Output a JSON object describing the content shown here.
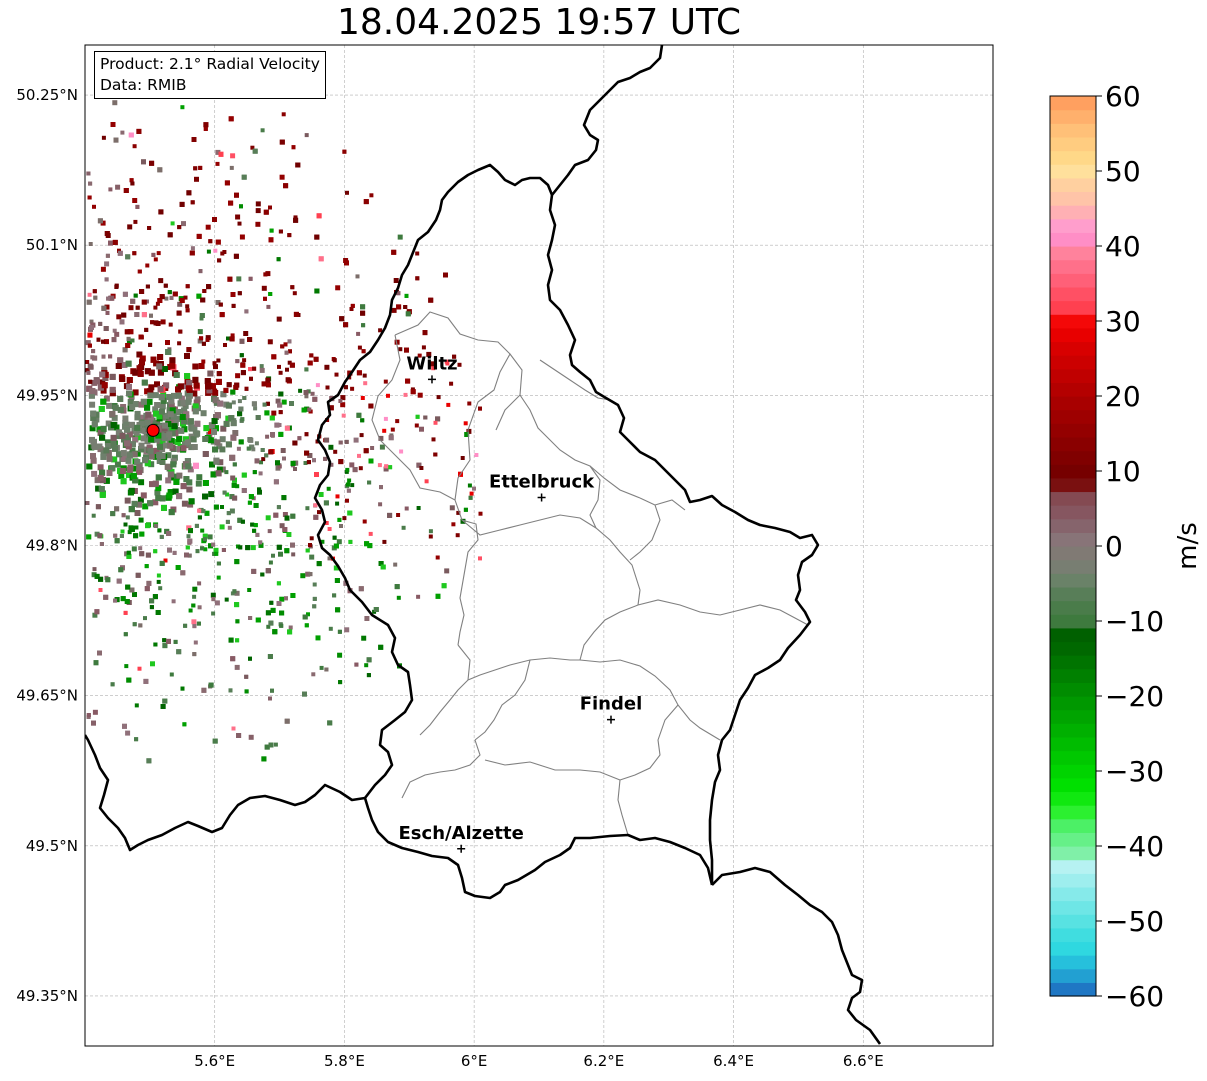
{
  "title": "18.04.2025 19:57 UTC",
  "info": {
    "product": "Product: 2.1° Radial Velocity",
    "source": "Data: RMIB"
  },
  "map": {
    "lon_range": [
      5.4,
      6.8
    ],
    "lat_range": [
      49.3,
      50.3
    ],
    "lon_ticks": [
      {
        "value": 5.6,
        "label": "5.6°E"
      },
      {
        "value": 5.8,
        "label": "5.8°E"
      },
      {
        "value": 6.0,
        "label": "6°E"
      },
      {
        "value": 6.2,
        "label": "6.2°E"
      },
      {
        "value": 6.4,
        "label": "6.4°E"
      },
      {
        "value": 6.6,
        "label": "6.6°E"
      }
    ],
    "lat_ticks": [
      {
        "value": 50.25,
        "label": "50.25°N"
      },
      {
        "value": 50.1,
        "label": "50.1°N"
      },
      {
        "value": 49.95,
        "label": "49.95°N"
      },
      {
        "value": 49.8,
        "label": "49.8°N"
      },
      {
        "value": 49.65,
        "label": "49.65°N"
      },
      {
        "value": 49.5,
        "label": "49.5°N"
      },
      {
        "value": 49.35,
        "label": "49.35°N"
      }
    ],
    "gridlines": true,
    "radar_site": {
      "lon": 5.505,
      "lat": 49.915
    },
    "cities": [
      {
        "name": "Wiltz",
        "lon": 5.935,
        "lat": 49.966
      },
      {
        "name": "Ettelbruck",
        "lon": 6.104,
        "lat": 49.848
      },
      {
        "name": "Findel",
        "lon": 6.211,
        "lat": 49.626
      },
      {
        "name": "Esch/Alzette",
        "lon": 5.98,
        "lat": 49.497
      }
    ]
  },
  "colorbar": {
    "label": "m/s",
    "min": -60,
    "max": 60,
    "ticks": [
      {
        "value": 60,
        "label": "60"
      },
      {
        "value": 50,
        "label": "50"
      },
      {
        "value": 40,
        "label": "40"
      },
      {
        "value": 30,
        "label": "30"
      },
      {
        "value": 20,
        "label": "20"
      },
      {
        "value": 10,
        "label": "10"
      },
      {
        "value": 0,
        "label": "0"
      },
      {
        "value": -10,
        "label": "−10"
      },
      {
        "value": -20,
        "label": "−20"
      },
      {
        "value": -30,
        "label": "−30"
      },
      {
        "value": -40,
        "label": "−40"
      },
      {
        "value": -50,
        "label": "−50"
      },
      {
        "value": -60,
        "label": "−60"
      }
    ],
    "colors": [
      "#1f77c4",
      "#22a0d2",
      "#26c0dc",
      "#2fd8e0",
      "#40dde0",
      "#58e2e2",
      "#6ee6e6",
      "#86eaea",
      "#9eeeee",
      "#b6f2f2",
      "#80f0a8",
      "#66f088",
      "#4cf066",
      "#2cf030",
      "#10e810",
      "#00e000",
      "#00d400",
      "#00c800",
      "#00bc00",
      "#00b000",
      "#00a400",
      "#009800",
      "#008c00",
      "#008000",
      "#007400",
      "#006800",
      "#006000",
      "#3e7a3e",
      "#4a7c4a",
      "#587e58",
      "#6a8268",
      "#787e72",
      "#807a74",
      "#887478",
      "#86646c",
      "#865660",
      "#844a52",
      "#7a1010",
      "#760000",
      "#800000",
      "#8a0000",
      "#940000",
      "#9e0000",
      "#a80000",
      "#b40000",
      "#c00000",
      "#cc0000",
      "#d80000",
      "#e80000",
      "#f40808",
      "#ff4050",
      "#ff5064",
      "#ff6078",
      "#ff708a",
      "#ff829c",
      "#ff8ec6",
      "#ff9ecc",
      "#ffb0b4",
      "#ffc4a8",
      "#ffd0a0",
      "#ffe09c",
      "#ffd888",
      "#ffcc80",
      "#ffc078",
      "#ffb06c",
      "#ffa060"
    ]
  }
}
